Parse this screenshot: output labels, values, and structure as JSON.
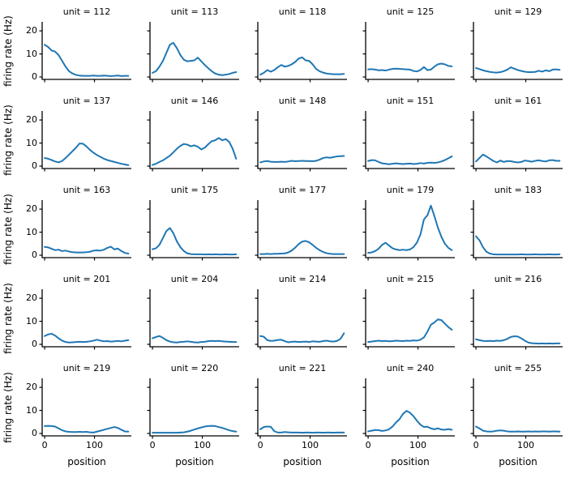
{
  "figure": {
    "ylabel": "firing rate (Hz)",
    "xlabel": "position",
    "yticks": [
      0,
      10,
      20
    ],
    "xticks": [
      0,
      100
    ],
    "ylim": [
      -1.05,
      23.9
    ],
    "xlim": [
      -5,
      174
    ],
    "grid": "off",
    "legend": "none",
    "line_color": "#1f77b4",
    "spine_color": "#000000",
    "n_rows": 5,
    "n_cols": 5,
    "x": [
      0,
      7,
      14,
      21,
      28,
      35,
      42,
      49,
      56,
      63,
      70,
      77,
      84,
      91,
      98,
      105,
      112,
      119,
      126,
      133,
      140,
      147,
      154,
      161,
      168
    ]
  },
  "chart_data": [
    {
      "type": "line",
      "unit": 112,
      "title": "unit = 112",
      "values": [
        14,
        13,
        11.5,
        11,
        9.5,
        7,
        4.5,
        2.5,
        1.5,
        0.9,
        0.6,
        0.5,
        0.5,
        0.5,
        0.6,
        0.5,
        0.5,
        0.6,
        0.5,
        0.4,
        0.5,
        0.6,
        0.4,
        0.5,
        0.5
      ]
    },
    {
      "type": "line",
      "unit": 113,
      "title": "unit = 113",
      "values": [
        1.8,
        2.5,
        4.5,
        7,
        10.5,
        14,
        14.8,
        12.5,
        9.5,
        7.5,
        6.8,
        7,
        7.2,
        8.4,
        6.8,
        5.2,
        3.8,
        2.5,
        1.5,
        1,
        0.8,
        1,
        1.3,
        1.8,
        2.1
      ]
    },
    {
      "type": "line",
      "unit": 118,
      "title": "unit = 118",
      "values": [
        1,
        1.8,
        3,
        2.3,
        3,
        4.2,
        5.2,
        4.5,
        4.8,
        5.5,
        6.5,
        8,
        8.5,
        7.2,
        7,
        5.5,
        3.5,
        2.5,
        1.9,
        1.5,
        1.3,
        1.2,
        1.2,
        1.2,
        1.3
      ]
    },
    {
      "type": "line",
      "unit": 125,
      "title": "unit = 125",
      "values": [
        3.3,
        3.4,
        3.2,
        2.9,
        3,
        2.8,
        3.2,
        3.5,
        3.6,
        3.5,
        3.4,
        3.3,
        3.2,
        2.6,
        2.4,
        3,
        4.3,
        3,
        3.2,
        4.5,
        5.5,
        5.8,
        5.5,
        4.8,
        4.6
      ]
    },
    {
      "type": "line",
      "unit": 129,
      "title": "unit = 129",
      "values": [
        3.9,
        3.4,
        2.9,
        2.5,
        2.2,
        2,
        1.9,
        2.1,
        2.5,
        3.2,
        4.2,
        3.6,
        3,
        2.6,
        2.3,
        2.1,
        2.1,
        2.2,
        2.7,
        2.3,
        2.9,
        2.5,
        3.2,
        3.3,
        3.1
      ]
    },
    {
      "type": "line",
      "unit": 137,
      "title": "unit = 137",
      "values": [
        3.5,
        3.2,
        2.6,
        2,
        1.6,
        2.2,
        3.5,
        5,
        6.5,
        8,
        9.8,
        9.7,
        8.5,
        7,
        5.8,
        4.8,
        4,
        3.2,
        2.6,
        2.2,
        1.8,
        1.4,
        1,
        0.7,
        0.4
      ]
    },
    {
      "type": "line",
      "unit": 146,
      "title": "unit = 146",
      "values": [
        0.5,
        1,
        1.8,
        2.5,
        3.5,
        4.5,
        6,
        7.5,
        8.8,
        9.6,
        9.3,
        8.6,
        9,
        8.4,
        7.2,
        8,
        9.5,
        10.8,
        11.2,
        12.2,
        11.2,
        11.7,
        10.5,
        7.5,
        3.2
      ]
    },
    {
      "type": "line",
      "unit": 148,
      "title": "unit = 148",
      "values": [
        1.6,
        2,
        2.2,
        1.9,
        1.8,
        1.8,
        1.9,
        1.8,
        2,
        2.3,
        2.1,
        2.2,
        2.3,
        2.2,
        2.2,
        2.1,
        2.3,
        2.8,
        3.5,
        3.8,
        3.6,
        3.9,
        4.2,
        4.3,
        4.4
      ]
    },
    {
      "type": "line",
      "unit": 151,
      "title": "unit = 151",
      "values": [
        2.2,
        2.6,
        2.5,
        1.8,
        1.2,
        1,
        0.8,
        1,
        1.2,
        1,
        0.9,
        1,
        1.1,
        0.9,
        1,
        1.3,
        1.1,
        1.4,
        1.5,
        1.4,
        1.6,
        2,
        2.6,
        3.4,
        4.2
      ]
    },
    {
      "type": "line",
      "unit": 161,
      "title": "unit = 161",
      "values": [
        2,
        3.5,
        5,
        4.2,
        3.2,
        2.2,
        1.6,
        2.4,
        1.8,
        2.2,
        2.1,
        1.8,
        1.6,
        1.8,
        2.4,
        2.2,
        1.9,
        2.3,
        2.5,
        2.2,
        2,
        2.5,
        2.6,
        2.3,
        2.3
      ]
    },
    {
      "type": "line",
      "unit": 163,
      "title": "unit = 163",
      "values": [
        3.6,
        3.4,
        2.8,
        2.2,
        2.4,
        1.8,
        2,
        1.6,
        1.3,
        1.2,
        1.2,
        1.2,
        1.3,
        1.5,
        2,
        2.1,
        2,
        2.4,
        3.2,
        3.7,
        2.5,
        2.9,
        1.8,
        1,
        0.7
      ]
    },
    {
      "type": "line",
      "unit": 175,
      "title": "unit = 175",
      "values": [
        2.6,
        3,
        4.5,
        7.5,
        10.5,
        11.8,
        9.5,
        6,
        3.5,
        1.8,
        0.8,
        0.5,
        0.4,
        0.4,
        0.4,
        0.3,
        0.4,
        0.3,
        0.4,
        0.3,
        0.3,
        0.4,
        0.3,
        0.3,
        0.4
      ]
    },
    {
      "type": "line",
      "unit": 177,
      "title": "unit = 177",
      "values": [
        0.5,
        0.5,
        0.6,
        0.5,
        0.6,
        0.6,
        0.7,
        0.8,
        1.2,
        2,
        3.3,
        4.8,
        5.9,
        6.2,
        5.6,
        4.5,
        3.2,
        2.2,
        1.4,
        0.9,
        0.6,
        0.5,
        0.5,
        0.5,
        0.5
      ]
    },
    {
      "type": "line",
      "unit": 179,
      "title": "unit = 179",
      "values": [
        1,
        1.2,
        1.8,
        2.8,
        4.5,
        5.4,
        4.2,
        3,
        2.5,
        2.2,
        2.4,
        2.2,
        2.5,
        3.5,
        5.5,
        9,
        15.5,
        17.3,
        21.5,
        17,
        12,
        8,
        5,
        3.2,
        2.2
      ]
    },
    {
      "type": "line",
      "unit": 183,
      "title": "unit = 183",
      "values": [
        8.2,
        6.5,
        3.5,
        1.5,
        0.7,
        0.4,
        0.3,
        0.3,
        0.3,
        0.3,
        0.3,
        0.3,
        0.3,
        0.4,
        0.3,
        0.3,
        0.3,
        0.4,
        0.3,
        0.3,
        0.3,
        0.4,
        0.3,
        0.3,
        0.4
      ]
    },
    {
      "type": "line",
      "unit": 201,
      "title": "unit = 201",
      "values": [
        3.6,
        4.3,
        4.6,
        3.8,
        2.6,
        1.6,
        1,
        0.8,
        0.9,
        1,
        1.1,
        1,
        1.1,
        1.3,
        1.6,
        2,
        1.6,
        1.3,
        1.4,
        1.2,
        1.3,
        1.5,
        1.3,
        1.6,
        1.8
      ]
    },
    {
      "type": "line",
      "unit": 204,
      "title": "unit = 204",
      "values": [
        2.6,
        3.2,
        3.6,
        2.8,
        1.8,
        1.2,
        0.9,
        0.8,
        1,
        1.1,
        1.3,
        1.1,
        0.9,
        0.8,
        1,
        1.1,
        1.4,
        1.5,
        1.4,
        1.5,
        1.3,
        1.2,
        1.1,
        1,
        1
      ]
    },
    {
      "type": "line",
      "unit": 214,
      "title": "unit = 214",
      "values": [
        3.6,
        3.3,
        1.8,
        1.5,
        1.6,
        1.9,
        2,
        1.4,
        0.9,
        1.1,
        1.2,
        1,
        1.1,
        1.2,
        1,
        1.3,
        1.2,
        1.1,
        1.4,
        1.6,
        1.3,
        1.2,
        1.5,
        2.4,
        4.8
      ]
    },
    {
      "type": "line",
      "unit": 215,
      "title": "unit = 215",
      "values": [
        1,
        1.2,
        1.4,
        1.6,
        1.4,
        1.5,
        1.3,
        1.4,
        1.6,
        1.5,
        1.4,
        1.6,
        1.5,
        1.7,
        1.6,
        2,
        3,
        5.5,
        8.5,
        9.5,
        10.8,
        10.5,
        9,
        7.5,
        6.3
      ]
    },
    {
      "type": "line",
      "unit": 216,
      "title": "unit = 216",
      "values": [
        2.2,
        1.8,
        1.5,
        1.4,
        1.5,
        1.4,
        1.6,
        1.5,
        1.8,
        2.4,
        3.2,
        3.5,
        3.4,
        2.6,
        1.6,
        0.8,
        0.5,
        0.4,
        0.3,
        0.4,
        0.3,
        0.4,
        0.3,
        0.4,
        0.4
      ]
    },
    {
      "type": "line",
      "unit": 219,
      "title": "unit = 219",
      "values": [
        3.2,
        3.3,
        3.2,
        3,
        2.2,
        1.4,
        0.9,
        0.7,
        0.6,
        0.6,
        0.7,
        0.6,
        0.7,
        0.5,
        0.4,
        0.8,
        1.2,
        1.6,
        2,
        2.4,
        2.8,
        2.4,
        1.6,
        0.9,
        0.8
      ]
    },
    {
      "type": "line",
      "unit": 220,
      "title": "unit = 220",
      "values": [
        0.3,
        0.3,
        0.3,
        0.3,
        0.3,
        0.3,
        0.3,
        0.3,
        0.4,
        0.5,
        0.8,
        1.2,
        1.7,
        2.2,
        2.6,
        3,
        3.2,
        3.3,
        3.2,
        2.8,
        2.4,
        1.9,
        1.4,
        1,
        0.8
      ]
    },
    {
      "type": "line",
      "unit": 221,
      "title": "unit = 221",
      "values": [
        1.8,
        2.8,
        3,
        2.9,
        1,
        0.4,
        0.4,
        0.6,
        0.5,
        0.4,
        0.4,
        0.4,
        0.3,
        0.4,
        0.4,
        0.3,
        0.4,
        0.4,
        0.3,
        0.4,
        0.4,
        0.3,
        0.4,
        0.4,
        0.4
      ]
    },
    {
      "type": "line",
      "unit": 240,
      "title": "unit = 240",
      "values": [
        0.9,
        1.2,
        1.5,
        1.4,
        1.1,
        1.3,
        1.8,
        3,
        4.8,
        6.2,
        8.5,
        9.8,
        9,
        7.5,
        5.5,
        3.8,
        2.8,
        2.9,
        2.2,
        1.8,
        2.2,
        1.7,
        1.6,
        1.9,
        1.6
      ]
    },
    {
      "type": "line",
      "unit": 255,
      "title": "unit = 255",
      "values": [
        3,
        2.2,
        1.2,
        0.9,
        0.8,
        0.9,
        1.2,
        1.3,
        1.2,
        0.9,
        0.8,
        0.8,
        0.9,
        0.8,
        0.8,
        0.9,
        0.8,
        0.9,
        0.8,
        0.9,
        0.9,
        0.8,
        0.9,
        0.9,
        0.8
      ]
    }
  ]
}
